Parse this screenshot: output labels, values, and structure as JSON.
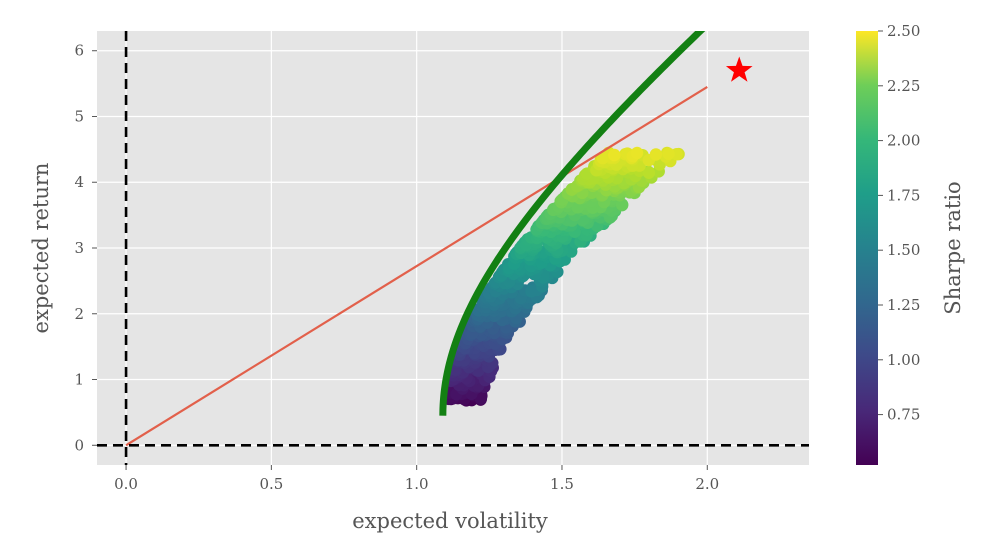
{
  "chart_data": {
    "type": "scatter",
    "title": "",
    "xlabel": "expected volatility",
    "ylabel": "expected return",
    "xlim": [
      -0.1,
      2.35
    ],
    "ylim": [
      -0.3,
      6.3
    ],
    "xticks": [
      0.0,
      0.5,
      1.0,
      1.5,
      2.0
    ],
    "xtick_labels": [
      "0.0",
      "0.5",
      "1.0",
      "1.5",
      "2.0"
    ],
    "yticks": [
      0,
      1,
      2,
      3,
      4,
      5,
      6
    ],
    "ytick_labels": [
      "0",
      "1",
      "2",
      "3",
      "4",
      "5",
      "6"
    ],
    "grid": true,
    "colorbar": {
      "label": "Sharpe ratio",
      "colormap": "viridis",
      "range": [
        0.52,
        2.5
      ],
      "ticks": [
        0.75,
        1.0,
        1.25,
        1.5,
        1.75,
        2.0,
        2.25,
        2.5
      ],
      "tick_labels": [
        "0.75",
        "1.00",
        "1.25",
        "1.50",
        "1.75",
        "2.00",
        "2.25",
        "2.50"
      ]
    },
    "scatter_cloud": {
      "name": "simulated portfolios",
      "color_by": "Sharpe ratio",
      "lower_left_anchor": [
        1.28,
        0.65
      ],
      "upper_right_anchor": [
        1.88,
        4.45
      ],
      "point_count": 900
    },
    "efficient_frontier": {
      "name": "efficient frontier",
      "color": "#138013",
      "vertex": [
        1.09,
        0.45
      ],
      "points": [
        [
          1.09,
          0.45
        ],
        [
          1.1,
          0.9
        ],
        [
          1.17,
          1.5
        ],
        [
          1.3,
          2.2
        ],
        [
          1.5,
          3.07
        ],
        [
          1.7,
          3.85
        ],
        [
          1.9,
          4.6
        ],
        [
          2.1,
          5.4
        ],
        [
          2.24,
          6.0
        ]
      ]
    },
    "capital_market_line": {
      "name": "capital market line",
      "color": "#e2604b",
      "points": [
        [
          0.0,
          0.0
        ],
        [
          2.0,
          5.45
        ]
      ]
    },
    "optimal_portfolio": {
      "name": "max Sharpe portfolio",
      "marker": "star",
      "color": "#ff0000",
      "point": [
        2.11,
        5.7
      ]
    },
    "reference_lines": [
      {
        "orientation": "vertical",
        "value": 0,
        "style": "dashed",
        "color": "#000000"
      },
      {
        "orientation": "horizontal",
        "value": 0,
        "style": "dashed",
        "color": "#000000"
      }
    ],
    "colors": {
      "plot_background": "#e5e5e5",
      "grid": "#ffffff",
      "text": "#555555"
    }
  }
}
